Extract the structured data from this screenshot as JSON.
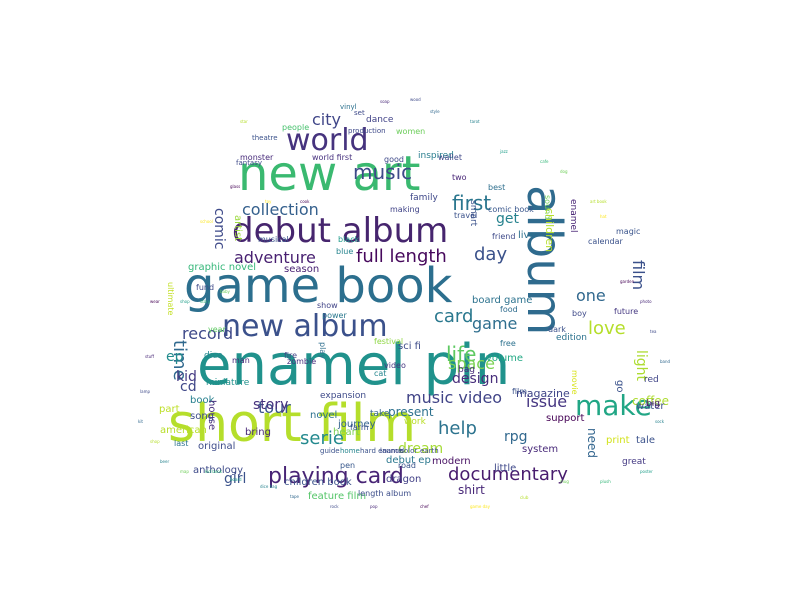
{
  "palette": [
    "#440154",
    "#482878",
    "#3e4a89",
    "#31688e",
    "#26828e",
    "#1f9e89",
    "#35b779",
    "#6ece58",
    "#b5de2b",
    "#fde725"
  ],
  "words": [
    {
      "text": "enamel pin",
      "c": "#20928c"
    },
    {
      "text": "short film",
      "c": "#b5de2b"
    },
    {
      "text": "game book",
      "c": "#2c6f8e"
    },
    {
      "text": "new art",
      "c": "#3ab970"
    },
    {
      "text": "album",
      "c": "#2f6b8e"
    },
    {
      "text": "debut album",
      "c": "#46256e"
    },
    {
      "text": "world",
      "c": "#46337e"
    },
    {
      "text": "new album",
      "c": "#3b518b"
    },
    {
      "text": "make",
      "c": "#21a685"
    },
    {
      "text": "playing card",
      "c": "#482475"
    },
    {
      "text": "documentary",
      "c": "#481c6e"
    },
    {
      "text": "music",
      "c": "#3e4a89"
    },
    {
      "text": "collection",
      "c": "#35608d"
    },
    {
      "text": "full length",
      "c": "#46085c"
    },
    {
      "text": "adventure",
      "c": "#482071"
    },
    {
      "text": "day",
      "c": "#3b528b"
    },
    {
      "text": "first",
      "c": "#2a768e"
    },
    {
      "text": "help",
      "c": "#2c738e"
    },
    {
      "text": "life",
      "c": "#5ec962"
    },
    {
      "text": "love",
      "c": "#b5de2b"
    },
    {
      "text": "film",
      "c": "#3b518b"
    },
    {
      "text": "music video",
      "c": "#414487"
    },
    {
      "text": "city",
      "c": "#404688"
    },
    {
      "text": "game",
      "c": "#2e6e8e"
    },
    {
      "text": "card",
      "c": "#2a788e"
    },
    {
      "text": "one",
      "c": "#31688e"
    },
    {
      "text": "tour",
      "c": "#3a548c"
    },
    {
      "text": "story",
      "c": "#46327e"
    },
    {
      "text": "serie",
      "c": "#23898e"
    },
    {
      "text": "time",
      "c": "#30698e"
    },
    {
      "text": "kid",
      "c": "#443983"
    },
    {
      "text": "record",
      "c": "#3e4989"
    },
    {
      "text": "comic",
      "c": "#3e4a89"
    },
    {
      "text": "get",
      "c": "#26828e"
    },
    {
      "text": "design",
      "c": "#472d7b"
    },
    {
      "text": "space",
      "c": "#7ad151"
    },
    {
      "text": "issue",
      "c": "#453581"
    },
    {
      "text": "light",
      "c": "#addc30"
    },
    {
      "text": "ep",
      "c": "#228c8d"
    },
    {
      "text": "cd",
      "c": "#3f4788"
    },
    {
      "text": "girl",
      "c": "#3b528b"
    },
    {
      "text": "shirt",
      "c": "#482878"
    },
    {
      "text": "rpg",
      "c": "#31688e"
    },
    {
      "text": "dream",
      "c": "#a5db36"
    },
    {
      "text": "present",
      "c": "#2d718e"
    },
    {
      "text": "magazine",
      "c": "#404588"
    },
    {
      "text": "graphic novel",
      "c": "#35b779"
    },
    {
      "text": "season",
      "c": "#482173"
    },
    {
      "text": "board game",
      "c": "#2c728e"
    },
    {
      "text": "dance",
      "c": "#414287"
    },
    {
      "text": "women",
      "c": "#6ccd5a"
    },
    {
      "text": "theatre",
      "c": "#3b528b"
    },
    {
      "text": "people",
      "c": "#48c16e"
    },
    {
      "text": "monster",
      "c": "#472a7a"
    },
    {
      "text": "world first",
      "c": "#46307e"
    },
    {
      "text": "sci fi",
      "c": "#3e4c8a"
    },
    {
      "text": "inspired",
      "c": "#287d8e"
    },
    {
      "text": "good",
      "c": "#3e4989"
    },
    {
      "text": "two",
      "c": "#482677"
    },
    {
      "text": "best",
      "c": "#2e6f8e"
    },
    {
      "text": "making",
      "c": "#404387"
    },
    {
      "text": "comic book",
      "c": "#39568c"
    },
    {
      "text": "artist",
      "c": "#9bd93c"
    },
    {
      "text": "musical",
      "c": "#3a548c"
    },
    {
      "text": "black",
      "c": "#1e9b8a"
    },
    {
      "text": "blue",
      "c": "#25848e"
    },
    {
      "text": "live",
      "c": "#2d708e"
    },
    {
      "text": "travel",
      "c": "#3b528b"
    },
    {
      "text": "enamel",
      "c": "#482475"
    },
    {
      "text": "volume",
      "c": "#22a884"
    },
    {
      "text": "food",
      "c": "#2f6c8e"
    },
    {
      "text": "show",
      "c": "#414487"
    },
    {
      "text": "power",
      "c": "#2a788e"
    },
    {
      "text": "festival",
      "c": "#8fd744"
    },
    {
      "text": "dark",
      "c": "#3b518b"
    },
    {
      "text": "ultimate",
      "c": "#c2df23"
    },
    {
      "text": "fund",
      "c": "#3e4a89"
    },
    {
      "text": "miniature",
      "c": "#21918c"
    },
    {
      "text": "dice",
      "c": "#23888e"
    },
    {
      "text": "man",
      "c": "#482878"
    },
    {
      "text": "zombie",
      "c": "#46307e"
    },
    {
      "text": "play",
      "c": "#2e6e8e"
    },
    {
      "text": "fire",
      "c": "#414487"
    },
    {
      "text": "bag",
      "c": "#472c7a"
    },
    {
      "text": "cat",
      "c": "#24868e"
    },
    {
      "text": "video",
      "c": "#453781"
    },
    {
      "text": "expansion",
      "c": "#3e4a89"
    },
    {
      "text": "novel",
      "c": "#2c718e"
    },
    {
      "text": "journey",
      "c": "#33638d"
    },
    {
      "text": "heart",
      "c": "#7ad151"
    },
    {
      "text": "debut ep",
      "c": "#2a778e"
    },
    {
      "text": "feature film",
      "c": "#54c568"
    },
    {
      "text": "length album",
      "c": "#3d4e8a"
    },
    {
      "text": "modern",
      "c": "#471063"
    },
    {
      "text": "little",
      "c": "#3f4889"
    },
    {
      "text": "system",
      "c": "#482979"
    },
    {
      "text": "free",
      "c": "#2c718e"
    },
    {
      "text": "edition",
      "c": "#2c728e"
    },
    {
      "text": "movie",
      "c": "#d8e219"
    },
    {
      "text": "tale",
      "c": "#3b528b"
    },
    {
      "text": "print",
      "c": "#d2e21b"
    },
    {
      "text": "need",
      "c": "#32658e"
    },
    {
      "text": "support",
      "c": "#440154"
    },
    {
      "text": "great",
      "c": "#443983"
    },
    {
      "text": "coffee",
      "c": "#addc30"
    },
    {
      "text": "water",
      "c": "#3c4f8a"
    },
    {
      "text": "big",
      "c": "#481c6e"
    },
    {
      "text": "red",
      "c": "#404588"
    },
    {
      "text": "go",
      "c": "#3b528b"
    },
    {
      "text": "future",
      "c": "#453882"
    },
    {
      "text": "book",
      "c": "#27808e"
    },
    {
      "text": "song",
      "c": "#3d4d8a"
    },
    {
      "text": "american",
      "c": "#b8de29"
    },
    {
      "text": "part",
      "c": "#bddf26"
    },
    {
      "text": "original",
      "c": "#3e4c8a"
    },
    {
      "text": "last",
      "c": "#2c728e"
    },
    {
      "text": "house",
      "c": "#472f7d"
    },
    {
      "text": "anthology",
      "c": "#3e4a89"
    },
    {
      "text": "children book",
      "c": "#3b528b"
    },
    {
      "text": "bring",
      "c": "#482878"
    },
    {
      "text": "dragon",
      "c": "#424086"
    },
    {
      "text": "pen",
      "c": "#38588c"
    },
    {
      "text": "road",
      "c": "#3a548c"
    },
    {
      "text": "take",
      "c": "#33638d"
    },
    {
      "text": "work",
      "c": "#bade28"
    },
    {
      "text": "production",
      "c": "#3e4989"
    },
    {
      "text": "vinyl",
      "c": "#2d718e"
    },
    {
      "text": "set",
      "c": "#3e4a89"
    },
    {
      "text": "wallet",
      "c": "#3f4788"
    },
    {
      "text": "calendar",
      "c": "#3b528b"
    },
    {
      "text": "family",
      "c": "#3f4889"
    },
    {
      "text": "year",
      "c": "#5ec962"
    },
    {
      "text": "boy",
      "c": "#3e4989"
    },
    {
      "text": "magic",
      "c": "#3a548c"
    },
    {
      "text": "farm",
      "c": "#3b528b"
    },
    {
      "text": "film",
      "c": "#3b528b"
    },
    {
      "text": "sound",
      "c": "#6ece58"
    },
    {
      "text": "children",
      "c": "#b5de2b"
    },
    {
      "text": "smart",
      "c": "#3b528b"
    },
    {
      "text": "friend",
      "c": "#3e4a89"
    },
    {
      "text": "fantasy",
      "c": "#3e4989"
    },
    {
      "text": "guide",
      "c": "#3b528b"
    },
    {
      "text": "home",
      "c": "#25858e"
    },
    {
      "text": "hard enamel",
      "c": "#3b528b"
    },
    {
      "text": "launch",
      "c": "#3e4a89"
    },
    {
      "text": "color",
      "c": "#3b528b"
    },
    {
      "text": "earth",
      "c": "#3e4a89"
    }
  ],
  "tiny_words": [
    "wear",
    "stuff",
    "lamp",
    "kit",
    "beer",
    "shop",
    "story",
    "baby",
    "star",
    "toy",
    "cook",
    "soap",
    "wood",
    "style",
    "tarot",
    "jazz",
    "cafe",
    "dog",
    "art book",
    "hat",
    "garden",
    "photo",
    "tea",
    "band",
    "sock",
    "poster",
    "plush",
    "mug",
    "club",
    "game day",
    "chef",
    "pop",
    "rock",
    "tape",
    "dice bag",
    "board",
    "kid book",
    "map",
    "shop",
    "school",
    "glass"
  ]
}
